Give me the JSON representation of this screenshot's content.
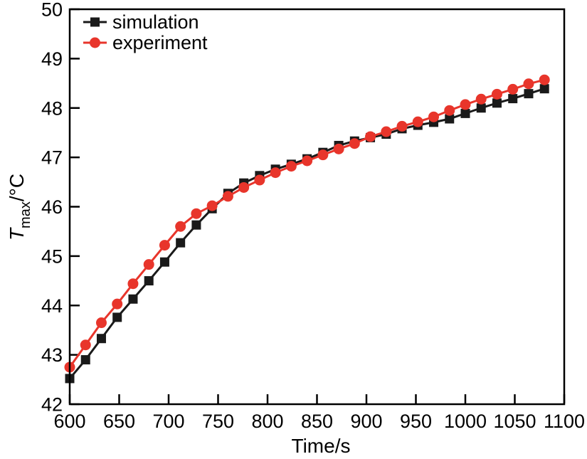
{
  "figure": {
    "background": "#ffffff",
    "frame_color": "#000000"
  },
  "chart_data": {
    "type": "line",
    "title": "",
    "xlabel": "Time/s",
    "ylabel": "T_max/°C",
    "ylabel_parts": {
      "main": "T",
      "sub": "max",
      "unit": "/°C"
    },
    "xlim": [
      600,
      1100
    ],
    "ylim": [
      42,
      50
    ],
    "xticks": [
      600,
      650,
      700,
      750,
      800,
      850,
      900,
      950,
      1000,
      1050,
      1100
    ],
    "yticks": [
      42,
      43,
      44,
      45,
      46,
      47,
      48,
      49,
      50
    ],
    "grid": false,
    "legend_position": "top-left",
    "x": [
      600,
      616,
      632,
      648,
      664,
      680,
      696,
      712,
      728,
      744,
      760,
      776,
      792,
      808,
      824,
      840,
      856,
      872,
      888,
      904,
      920,
      936,
      952,
      968,
      984,
      1000,
      1016,
      1032,
      1048,
      1064,
      1080
    ],
    "series": [
      {
        "name": "simulation",
        "color": "#1a1a1a",
        "marker": "square",
        "values": [
          42.52,
          42.9,
          43.33,
          43.76,
          44.13,
          44.5,
          44.88,
          45.27,
          45.63,
          45.96,
          46.27,
          46.48,
          46.63,
          46.76,
          46.86,
          46.97,
          47.1,
          47.24,
          47.33,
          47.4,
          47.47,
          47.58,
          47.65,
          47.71,
          47.78,
          47.89,
          48.0,
          48.1,
          48.19,
          48.29,
          48.39
        ]
      },
      {
        "name": "experiment",
        "color": "#e8352b",
        "marker": "circle",
        "values": [
          42.75,
          43.2,
          43.65,
          44.03,
          44.44,
          44.83,
          45.22,
          45.6,
          45.86,
          46.02,
          46.21,
          46.39,
          46.54,
          46.69,
          46.82,
          46.93,
          47.05,
          47.17,
          47.28,
          47.42,
          47.52,
          47.63,
          47.72,
          47.82,
          47.95,
          48.07,
          48.18,
          48.28,
          48.38,
          48.49,
          48.57
        ]
      }
    ]
  }
}
